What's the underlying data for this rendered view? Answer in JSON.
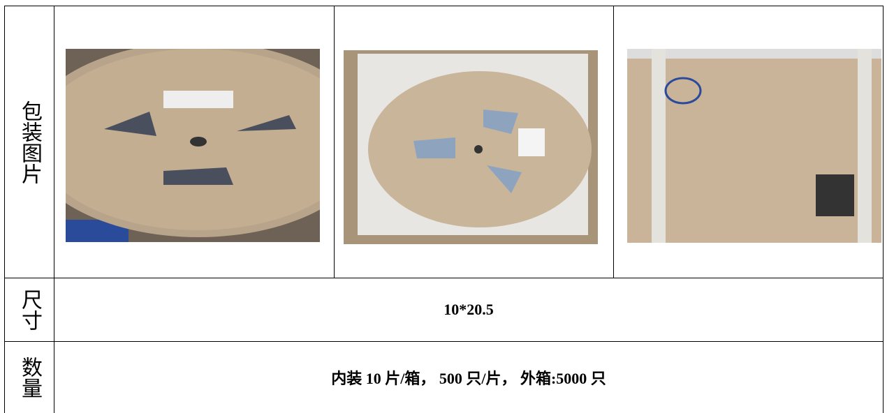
{
  "table": {
    "rows": [
      [
        "包装图片"
      ],
      [
        "尺寸",
        "10*20.5"
      ],
      [
        "数量",
        "内装 10 片/箱， 500 只/片， 外箱:5000 只"
      ]
    ]
  }
}
